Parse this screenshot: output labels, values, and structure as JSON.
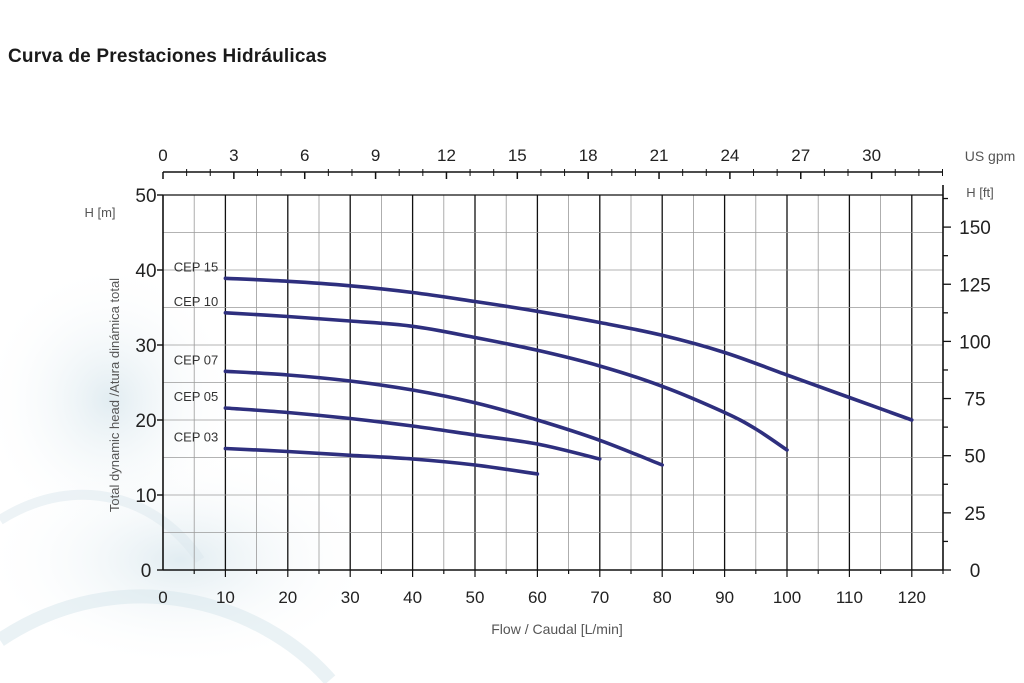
{
  "title": "Curva de Prestaciones Hidráulicas",
  "colors": {
    "curve": "#2e2f7e",
    "major_grid": "#111111",
    "minor_grid": "#9a9a9a",
    "axis": "#111111",
    "text": "#222222"
  },
  "chart_data": {
    "type": "line",
    "xlabel": "Flow / Caudal [L/min]",
    "ylabel": "Total dynamic head /Atura dinámica total",
    "left_axis_unit": "H [m]",
    "right_axis_unit": "H [ft]",
    "top_axis_unit": "US gpm",
    "xlim": [
      0,
      125
    ],
    "ylim": [
      0,
      50
    ],
    "x_ticks": [
      0,
      10,
      20,
      30,
      40,
      50,
      60,
      70,
      80,
      90,
      100,
      110,
      120
    ],
    "y_ticks": [
      0,
      10,
      20,
      30,
      40,
      50
    ],
    "right_ticks": [
      0,
      25,
      50,
      75,
      100,
      125,
      150
    ],
    "top_ticks": [
      0,
      3,
      6,
      9,
      12,
      15,
      18,
      21,
      24,
      27,
      30
    ],
    "series": [
      {
        "name": "CEP 15",
        "x": [
          10,
          20,
          30,
          40,
          50,
          60,
          70,
          80,
          90,
          100,
          110,
          120
        ],
        "y": [
          38.9,
          38.5,
          37.9,
          37,
          35.8,
          34.5,
          33,
          31.3,
          29,
          26,
          23,
          20
        ]
      },
      {
        "name": "CEP 10",
        "x": [
          10,
          20,
          30,
          40,
          50,
          60,
          70,
          80,
          90,
          95,
          100
        ],
        "y": [
          34.3,
          33.8,
          33.2,
          32.5,
          31,
          29.3,
          27.2,
          24.5,
          21,
          18.8,
          16
        ]
      },
      {
        "name": "CEP 07",
        "x": [
          10,
          20,
          30,
          40,
          50,
          60,
          70,
          80
        ],
        "y": [
          26.5,
          26,
          25.2,
          24,
          22.3,
          20,
          17.3,
          14
        ]
      },
      {
        "name": "CEP 05",
        "x": [
          10,
          20,
          30,
          40,
          50,
          60,
          70
        ],
        "y": [
          21.6,
          21,
          20.2,
          19.2,
          18,
          16.8,
          14.8
        ]
      },
      {
        "name": "CEP 03",
        "x": [
          10,
          20,
          30,
          40,
          50,
          60
        ],
        "y": [
          16.2,
          15.8,
          15.3,
          14.8,
          14,
          12.8
        ]
      }
    ]
  }
}
